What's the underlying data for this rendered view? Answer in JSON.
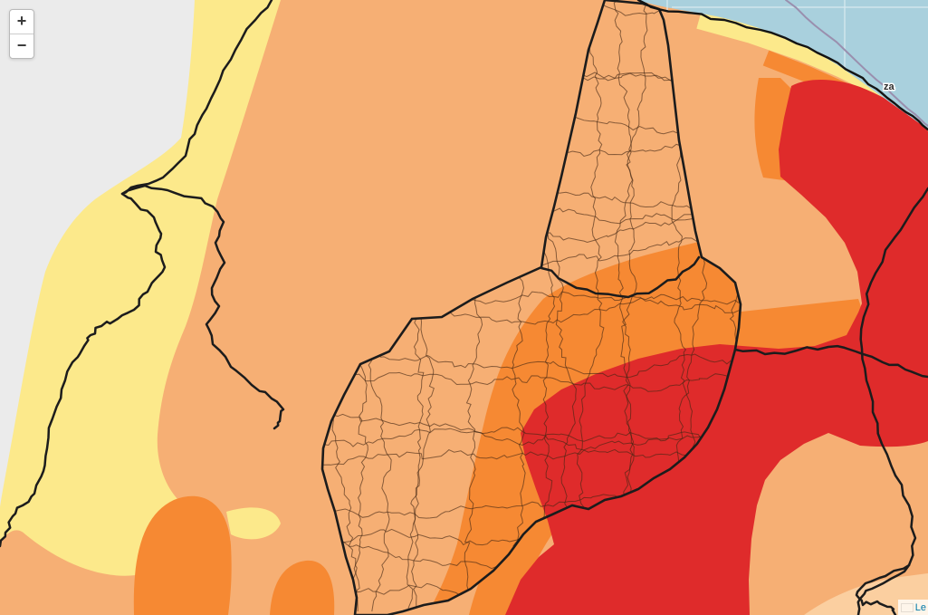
{
  "controls": {
    "zoom_in_label": "+",
    "zoom_out_label": "−"
  },
  "attribution": {
    "link_text": "Le",
    "flag_icon": "ukraine-flag-icon"
  },
  "labels": {
    "city_partial": "za"
  },
  "palette": {
    "ocean": "#A9D0DD",
    "graticule": "#D9EAF0",
    "gray_region": "#EBEBEB",
    "yellow": "#FCE98B",
    "light_orange": "#F6AF74",
    "medium_orange": "#F68933",
    "red": "#DF2B2B",
    "pale_orange": "#FBCFA0",
    "boundary_thick": "#1C1C1C",
    "boundary_thin": "rgba(66,38,20,0.62)",
    "maritime_line": "#9A8FAE",
    "coast_line": "#141414",
    "attribution_link": "#0078A8",
    "flag_blue": "#5B8FD6",
    "flag_yellow": "#F8D34C",
    "label_text": "#2B2B2B"
  }
}
